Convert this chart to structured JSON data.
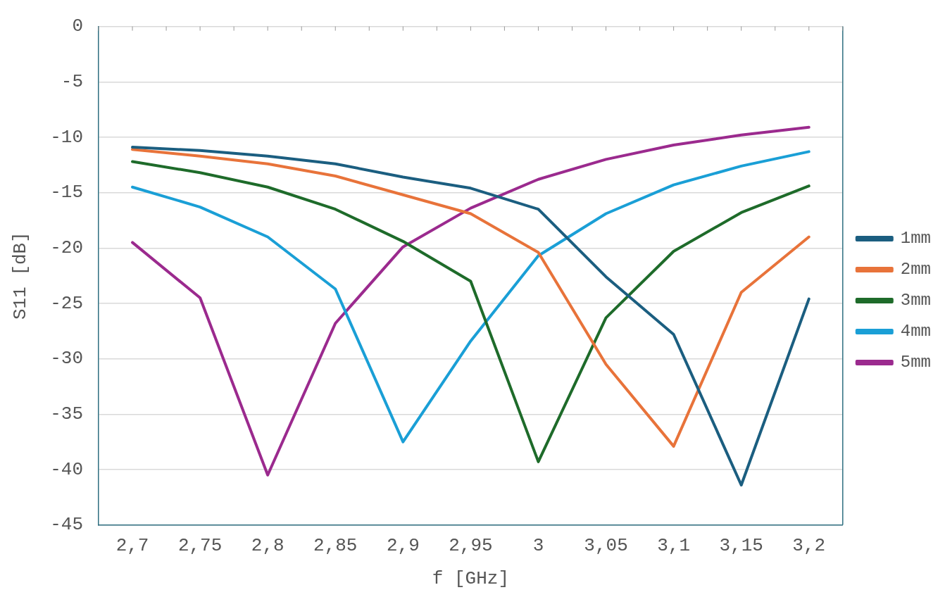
{
  "chart_data": {
    "type": "line",
    "xlabel": "f [GHz]",
    "ylabel": "S11 [dB]",
    "categories": [
      "2,7",
      "2,75",
      "2,8",
      "2,85",
      "2,9",
      "2,95",
      "3",
      "3,05",
      "3,1",
      "3,15",
      "3,2"
    ],
    "series": [
      {
        "name": "1mm",
        "color": "#1b5e80",
        "values": [
          -10.9,
          -11.2,
          -11.7,
          -12.4,
          -13.6,
          -14.6,
          -16.5,
          -22.6,
          -27.8,
          -41.4,
          -24.6
        ]
      },
      {
        "name": "2mm",
        "color": "#e8733a",
        "values": [
          -11.1,
          -11.7,
          -12.4,
          -13.5,
          -15.2,
          -16.9,
          -20.4,
          -30.5,
          -37.9,
          -24.0,
          -19.0
        ]
      },
      {
        "name": "3mm",
        "color": "#1e6b2a",
        "values": [
          -12.2,
          -13.2,
          -14.5,
          -16.5,
          -19.4,
          -23.0,
          -39.3,
          -26.3,
          -20.3,
          -16.8,
          -14.4
        ]
      },
      {
        "name": "4mm",
        "color": "#1a9fd6",
        "values": [
          -14.5,
          -16.3,
          -19.0,
          -23.7,
          -37.5,
          -28.4,
          -20.7,
          -16.9,
          -14.3,
          -12.6,
          -11.3
        ]
      },
      {
        "name": "5mm",
        "color": "#9b2a8e",
        "values": [
          -19.5,
          -24.5,
          -40.5,
          -26.8,
          -19.9,
          -16.4,
          -13.8,
          -12.0,
          -10.7,
          -9.8,
          -9.1
        ]
      }
    ],
    "ylim": [
      -45,
      0
    ],
    "yticks": [
      -45,
      -40,
      -35,
      -30,
      -25,
      -20,
      -15,
      -10,
      -5,
      0
    ],
    "grid": "y",
    "legend": "right",
    "marker": "none",
    "line_style": "solid"
  }
}
